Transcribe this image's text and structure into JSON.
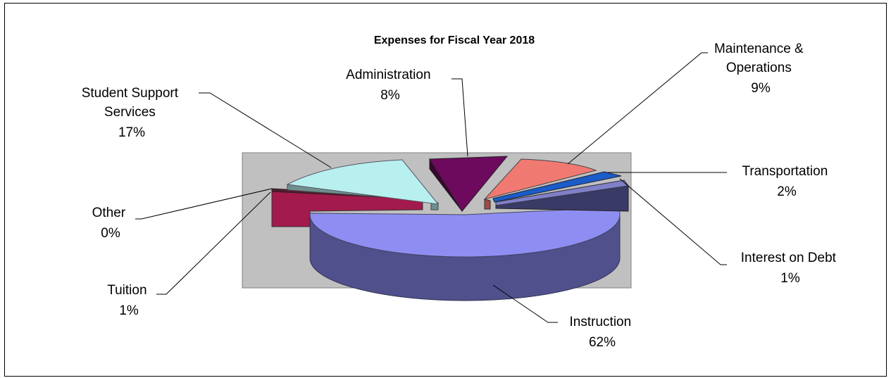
{
  "chart_data": {
    "type": "pie",
    "title": "Expenses for Fiscal Year 2018",
    "slices": [
      {
        "name": "Instruction",
        "value": 62,
        "label_lines": [
          "Instruction",
          "62%"
        ],
        "color": "#8e8ef2"
      },
      {
        "name": "Tuition",
        "value": 1,
        "label_lines": [
          "Tuition",
          "1%"
        ],
        "color": "#a31a4c"
      },
      {
        "name": "Other",
        "value": 0,
        "label_lines": [
          "Other",
          "0%"
        ],
        "color": "#5a1a2e"
      },
      {
        "name": "Student Support Services",
        "value": 17,
        "label_lines": [
          "Student Support",
          "Services",
          "17%"
        ],
        "color": "#b8efef"
      },
      {
        "name": "Administration",
        "value": 8,
        "label_lines": [
          "Administration",
          "8%"
        ],
        "color": "#6e0a5e"
      },
      {
        "name": "Maintenance & Operations",
        "value": 9,
        "label_lines": [
          "Maintenance &",
          "Operations",
          "9%"
        ],
        "color": "#f07a72"
      },
      {
        "name": "Transportation",
        "value": 2,
        "label_lines": [
          "Transportation",
          "2%"
        ],
        "color": "#1a5cc8"
      },
      {
        "name": "Interest on Debt",
        "value": 1,
        "label_lines": [
          "Interest on Debt",
          "1%"
        ],
        "color": "#8080c8"
      }
    ],
    "style": "3d-exploded",
    "plot_background": "#c0c0c0"
  }
}
